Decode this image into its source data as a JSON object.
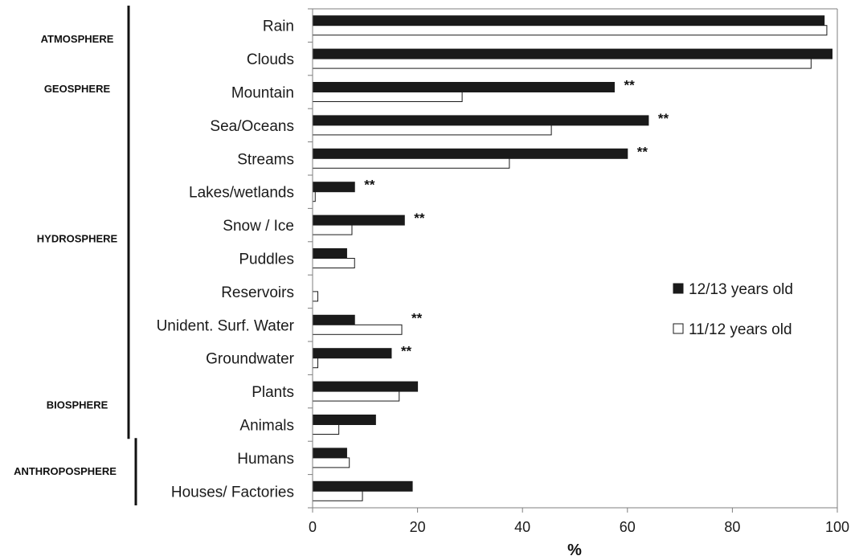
{
  "chart_data": {
    "type": "bar",
    "orientation": "horizontal",
    "xlabel": "%",
    "xlim": [
      0,
      100
    ],
    "xticks": [
      "0",
      "20",
      "40",
      "60",
      "80",
      "100"
    ],
    "categories": [
      "Rain",
      "Clouds",
      "Mountain",
      "Sea/Oceans",
      "Streams",
      "Lakes/wetlands",
      "Snow / Ice",
      "Puddles",
      "Reservoirs",
      "Unident. Surf. Water",
      "Groundwater",
      "Plants",
      "Animals",
      "Humans",
      "Houses/ Factories"
    ],
    "series": [
      {
        "name": "12/13 years old",
        "color": "#1a1a1a",
        "values": [
          97.5,
          99,
          57.5,
          64,
          60,
          8,
          17.5,
          6.5,
          0,
          8,
          15,
          20,
          12,
          6.5,
          19
        ]
      },
      {
        "name": "11/12 years old",
        "color": "#ffffff",
        "values": [
          98,
          95,
          28.5,
          45.5,
          37.5,
          0.5,
          7.5,
          8,
          1,
          17,
          1,
          16.5,
          5,
          7,
          9.5
        ]
      }
    ],
    "significance": [
      {
        "category": "Mountain",
        "label": "**"
      },
      {
        "category": "Sea/Oceans",
        "label": "**"
      },
      {
        "category": "Streams",
        "label": "**"
      },
      {
        "category": "Lakes/wetlands",
        "label": "**"
      },
      {
        "category": "Snow / Ice",
        "label": "**"
      },
      {
        "category": "Unident. Surf. Water",
        "label": "**"
      },
      {
        "category": "Groundwater",
        "label": "**"
      }
    ],
    "groups": [
      {
        "label": "ATMOSPHERE",
        "first": 0,
        "last": 1
      },
      {
        "label": "GEOSPHERE",
        "first": 2,
        "last": 2
      },
      {
        "label": "HYDROSPHERE",
        "first": 3,
        "last": 10
      },
      {
        "label": "BIOSPHERE",
        "first": 11,
        "last": 12
      },
      {
        "label": "ANTHROPOSPHERE",
        "first": 13,
        "last": 14
      }
    ],
    "legend": "right"
  }
}
